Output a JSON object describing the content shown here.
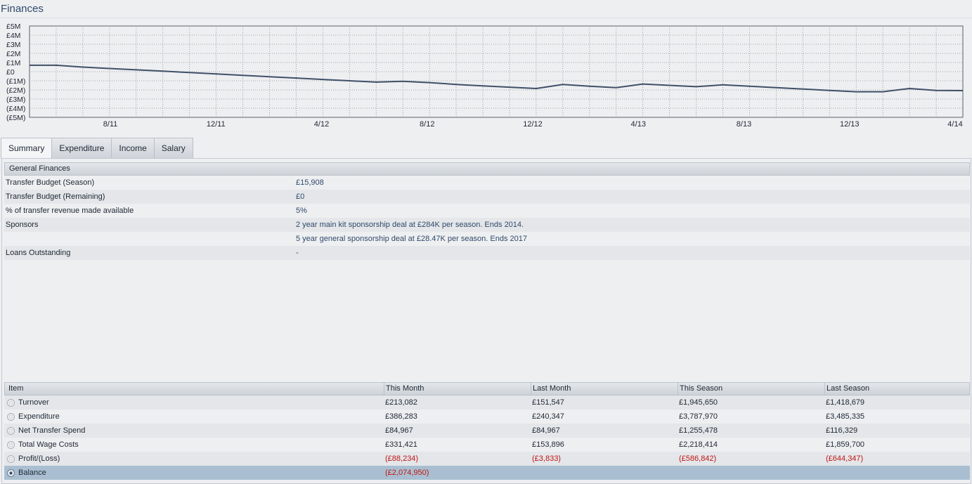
{
  "page": {
    "title": "Finances"
  },
  "colors": {
    "line": "#3f5068",
    "grid": "#8a8f95",
    "negative": "#c01616",
    "selected_row": "#a9bfd1"
  },
  "chart_data": {
    "type": "line",
    "yticks": [
      "£5M",
      "£4M",
      "£3M",
      "£2M",
      "£1M",
      "£0",
      "(£1M)",
      "(£2M)",
      "(£3M)",
      "(£4M)",
      "(£5M)"
    ],
    "ylim": [
      -5000000,
      5000000
    ],
    "xticks": [
      "8/11",
      "12/11",
      "4/12",
      "8/12",
      "12/12",
      "4/13",
      "8/13",
      "12/13",
      "4/14"
    ],
    "grid": true,
    "series": [
      {
        "values": [
          700000,
          700000,
          500000,
          350000,
          200000,
          50000,
          -100000,
          -250000,
          -400000,
          -550000,
          -700000,
          -850000,
          -1000000,
          -1150000,
          -1050000,
          -1200000,
          -1400000,
          -1550000,
          -1700000,
          -1850000,
          -1400000,
          -1600000,
          -1750000,
          -1350000,
          -1500000,
          -1650000,
          -1450000,
          -1600000,
          -1750000,
          -1900000,
          -2050000,
          -2200000,
          -2200000,
          -1850000,
          -2050000,
          -2074950
        ]
      }
    ]
  },
  "tabs": [
    {
      "label": "Summary",
      "active": true
    },
    {
      "label": "Expenditure",
      "active": false
    },
    {
      "label": "Income",
      "active": false
    },
    {
      "label": "Salary",
      "active": false
    }
  ],
  "general": {
    "heading": "General Finances",
    "rows": [
      {
        "label": "Transfer Budget (Season)",
        "value": "£15,908"
      },
      {
        "label": "Transfer Budget (Remaining)",
        "value": "£0"
      },
      {
        "label": "% of transfer revenue made available",
        "value": "5%"
      },
      {
        "label": "Sponsors",
        "value": "2 year main kit sponsorship deal at £284K per season. Ends 2014."
      },
      {
        "label": "",
        "value": "5 year general sponsorship deal at £28.47K per season. Ends 2017"
      },
      {
        "label": "Loans Outstanding",
        "value": "-"
      }
    ]
  },
  "table": {
    "headers": [
      "Item",
      "This Month",
      "Last Month",
      "This Season",
      "Last Season"
    ],
    "rows": [
      {
        "item": "Turnover",
        "this_month": "£213,082",
        "last_month": "£151,547",
        "this_season": "£1,945,650",
        "last_season": "£1,418,679"
      },
      {
        "item": "Expenditure",
        "this_month": "£386,283",
        "last_month": "£240,347",
        "this_season": "£3,787,970",
        "last_season": "£3,485,335"
      },
      {
        "item": "Net Transfer Spend",
        "this_month": "£84,967",
        "last_month": "£84,967",
        "this_season": "£1,255,478",
        "last_season": "£116,329"
      },
      {
        "item": "Total Wage Costs",
        "this_month": "£331,421",
        "last_month": "£153,896",
        "this_season": "£2,218,414",
        "last_season": "£1,859,700"
      },
      {
        "item": "Profit/(Loss)",
        "this_month": "(£88,234)",
        "last_month": "(£3,833)",
        "this_season": "(£586,842)",
        "last_season": "(£644,347)"
      },
      {
        "item": "Balance",
        "this_month": "(£2,074,950)",
        "last_month": "",
        "this_season": "",
        "last_season": ""
      }
    ]
  }
}
